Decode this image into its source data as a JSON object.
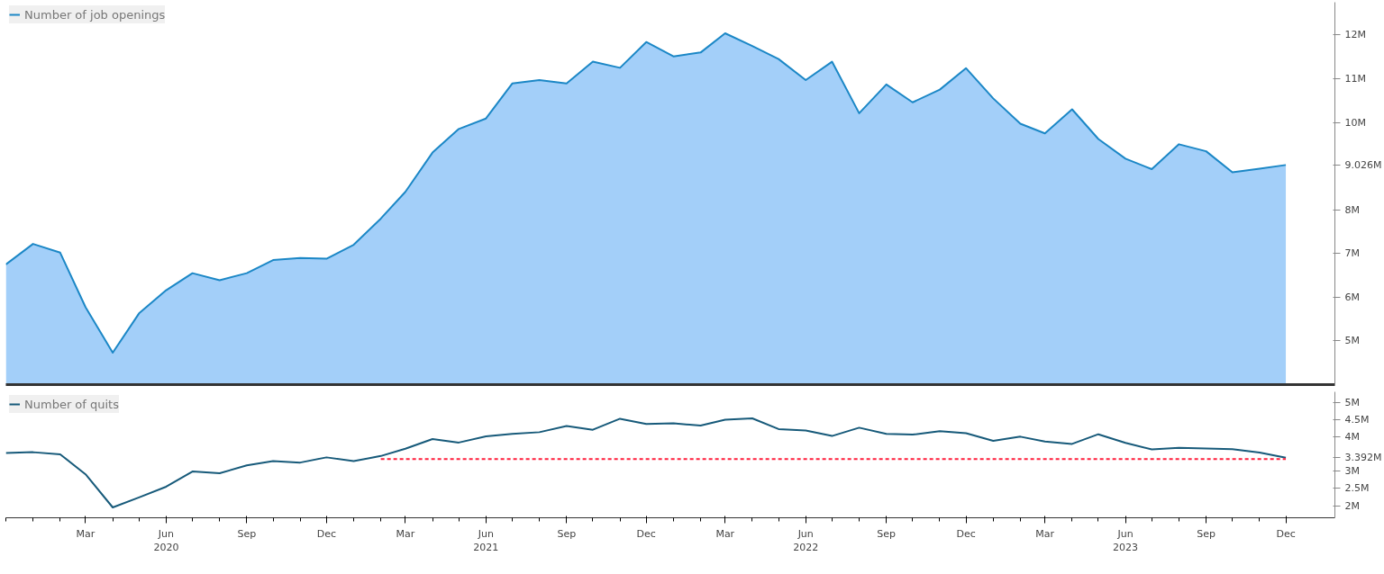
{
  "chart_data": [
    {
      "type": "area",
      "xlim": [
        "2019-12",
        "2024-01-26"
      ],
      "ylim": [
        4,
        12.75
      ],
      "yticks": [
        {
          "value": 5,
          "label": "5M"
        },
        {
          "value": 6,
          "label": "6M"
        },
        {
          "value": 7,
          "label": "7M"
        },
        {
          "value": 8,
          "label": "8M"
        },
        {
          "value": 9.026,
          "label": "9.026M"
        },
        {
          "value": 10,
          "label": "10M"
        },
        {
          "value": 11,
          "label": "11M"
        },
        {
          "value": 12,
          "label": "12M"
        }
      ],
      "xticks": [
        {
          "value": "2020-03",
          "label": null
        },
        {
          "value": "2020-06",
          "label": null
        },
        {
          "value": "2020-09",
          "label": null
        },
        {
          "value": "2020-12",
          "label": null
        },
        {
          "value": "2021-03",
          "label": null
        },
        {
          "value": "2021-06",
          "label": null
        },
        {
          "value": "2021-09",
          "label": null
        },
        {
          "value": "2021-12",
          "label": null
        },
        {
          "value": "2022-03",
          "label": null
        },
        {
          "value": "2022-06",
          "label": null
        },
        {
          "value": "2022-09",
          "label": null
        },
        {
          "value": "2022-12",
          "label": null
        },
        {
          "value": "2023-03",
          "label": null
        },
        {
          "value": "2023-06",
          "label": null
        },
        {
          "value": "2023-09",
          "label": null
        },
        {
          "value": "2023-12",
          "label": null
        }
      ],
      "tick_labels": "y",
      "legend": "top left",
      "x": [
        "2019-12",
        "2020-01",
        "2020-02",
        "2020-03",
        "2020-04",
        "2020-05",
        "2020-06",
        "2020-07",
        "2020-08",
        "2020-09",
        "2020-10",
        "2020-11",
        "2020-12",
        "2021-01",
        "2021-02",
        "2021-03",
        "2021-04",
        "2021-05",
        "2021-06",
        "2021-07",
        "2021-08",
        "2021-09",
        "2021-10",
        "2021-11",
        "2021-12",
        "2022-01",
        "2022-02",
        "2022-03",
        "2022-04",
        "2022-05",
        "2022-06",
        "2022-07",
        "2022-08",
        "2022-09",
        "2022-10",
        "2022-11",
        "2022-12",
        "2023-01",
        "2023-02",
        "2023-03",
        "2023-04",
        "2023-05",
        "2023-06",
        "2023-07",
        "2023-08",
        "2023-09",
        "2023-10",
        "2023-11",
        "2023-12"
      ],
      "series": [
        {
          "name": "Number of job openings",
          "color": "#1b87c6",
          "values": [
            6.75,
            7.22,
            7.02,
            5.77,
            4.73,
            5.63,
            6.16,
            6.55,
            6.39,
            6.55,
            6.85,
            6.9,
            6.88,
            7.2,
            7.8,
            8.41,
            9.31,
            9.85,
            10.09,
            10.89,
            10.97,
            10.89,
            11.39,
            11.25,
            11.84,
            11.51,
            11.6,
            12.04,
            11.75,
            11.45,
            10.97,
            11.39,
            10.21,
            10.87,
            10.46,
            10.75,
            11.24,
            10.55,
            9.97,
            9.75,
            10.3,
            9.62,
            9.17,
            8.93,
            9.5,
            9.34,
            8.86,
            8.94,
            9.026
          ]
        }
      ]
    },
    {
      "type": "line",
      "xlim": [
        "2019-12",
        "2024-01-26"
      ],
      "ylim": [
        1.65,
        5.3
      ],
      "yticks": [
        {
          "value": 2,
          "label": "2M"
        },
        {
          "value": 2.5,
          "label": "2.5M"
        },
        {
          "value": 3,
          "label": "3M"
        },
        {
          "value": 3.392,
          "label": "3.392M"
        },
        {
          "value": 4,
          "label": "4M"
        },
        {
          "value": 4.5,
          "label": "4.5M"
        },
        {
          "value": 5,
          "label": "5M"
        }
      ],
      "xticks": [
        {
          "value": "2020-03",
          "label": "Mar"
        },
        {
          "value": "2020-06",
          "label": "Jun\n2020"
        },
        {
          "value": "2020-09",
          "label": "Sep"
        },
        {
          "value": "2020-12",
          "label": "Dec"
        },
        {
          "value": "2021-03",
          "label": "Mar"
        },
        {
          "value": "2021-06",
          "label": "Jun\n2021"
        },
        {
          "value": "2021-09",
          "label": "Sep"
        },
        {
          "value": "2021-12",
          "label": "Dec"
        },
        {
          "value": "2022-03",
          "label": "Mar"
        },
        {
          "value": "2022-06",
          "label": "Jun\n2022"
        },
        {
          "value": "2022-09",
          "label": "Sep"
        },
        {
          "value": "2022-12",
          "label": "Dec"
        },
        {
          "value": "2023-03",
          "label": "Mar"
        },
        {
          "value": "2023-06",
          "label": "Jun\n2023"
        },
        {
          "value": "2023-09",
          "label": "Sep"
        },
        {
          "value": "2023-12",
          "label": "Dec"
        }
      ],
      "legend": "top left",
      "x": [
        "2019-12",
        "2020-01",
        "2020-02",
        "2020-03",
        "2020-04",
        "2020-05",
        "2020-06",
        "2020-07",
        "2020-08",
        "2020-09",
        "2020-10",
        "2020-11",
        "2020-12",
        "2021-01",
        "2021-02",
        "2021-03",
        "2021-04",
        "2021-05",
        "2021-06",
        "2021-07",
        "2021-08",
        "2021-09",
        "2021-10",
        "2021-11",
        "2021-12",
        "2022-01",
        "2022-02",
        "2022-03",
        "2022-04",
        "2022-05",
        "2022-06",
        "2022-07",
        "2022-08",
        "2022-09",
        "2022-10",
        "2022-11",
        "2022-12",
        "2023-01",
        "2023-02",
        "2023-03",
        "2023-04",
        "2023-05",
        "2023-06",
        "2023-07",
        "2023-08",
        "2023-09",
        "2023-10",
        "2023-11",
        "2023-12"
      ],
      "series": [
        {
          "name": "Number of quits",
          "color": "#175a7a",
          "values": [
            3.53,
            3.55,
            3.49,
            2.91,
            1.95,
            2.24,
            2.55,
            2.99,
            2.94,
            3.17,
            3.29,
            3.25,
            3.4,
            3.29,
            3.44,
            3.65,
            3.93,
            3.83,
            4.01,
            4.08,
            4.13,
            4.31,
            4.2,
            4.52,
            4.37,
            4.39,
            4.32,
            4.49,
            4.53,
            4.22,
            4.18,
            4.02,
            4.26,
            4.08,
            4.06,
            4.16,
            4.1,
            3.88,
            4.0,
            3.86,
            3.79,
            4.07,
            3.82,
            3.63,
            3.68,
            3.66,
            3.64,
            3.54,
            3.392
          ]
        },
        {
          "color": "#ff1f3d",
          "line_style": "dashed",
          "x": [
            "2021-02",
            "2023-12"
          ],
          "values": [
            3.35,
            3.35
          ]
        }
      ]
    }
  ]
}
